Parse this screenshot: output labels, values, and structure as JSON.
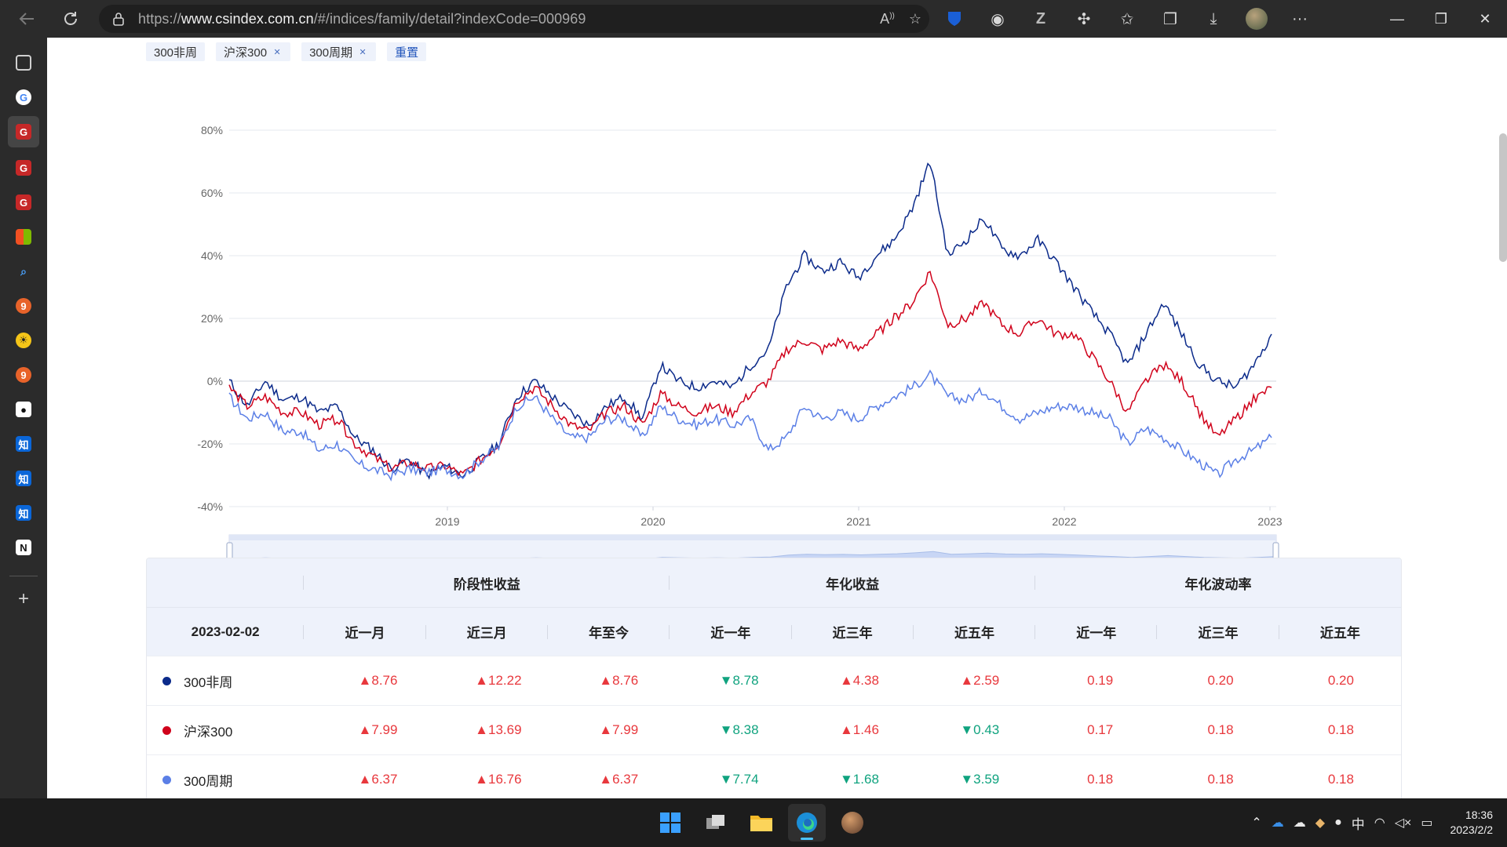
{
  "browser": {
    "url_prefix": "https://",
    "url_host": "www.csindex.com.cn",
    "url_path": "/#/indices/family/detail?indexCode=000969"
  },
  "tags": [
    {
      "label": "300非周",
      "closable": false
    },
    {
      "label": "沪深300",
      "closable": true
    },
    {
      "label": "300周期",
      "closable": true
    }
  ],
  "reset_label": "重置",
  "chart_data": {
    "type": "line",
    "y_tick_labels": [
      "80%",
      "60%",
      "40%",
      "20%",
      "0%",
      "-20%",
      "-40%"
    ],
    "ylim": [
      -40,
      80
    ],
    "x_tick_labels": [
      "2019",
      "2020",
      "2021",
      "2022",
      "2023"
    ],
    "grid": true,
    "series": [
      {
        "name": "300非周",
        "color": "#0b2a8a",
        "values": [
          0,
          -8,
          0,
          -6,
          -5,
          -10,
          -8,
          -18,
          -22,
          -28,
          -25,
          -30,
          -27,
          -30,
          -25,
          -20,
          -5,
          0,
          -5,
          -10,
          -14,
          -8,
          -5,
          -12,
          5,
          0,
          -2,
          0,
          -2,
          5,
          10,
          30,
          40,
          35,
          38,
          33,
          40,
          45,
          55,
          70,
          40,
          45,
          52,
          42,
          40,
          45,
          38,
          30,
          22,
          15,
          5,
          15,
          25,
          15,
          5,
          0,
          -2,
          5,
          15
        ]
      },
      {
        "name": "沪深300",
        "color": "#d0021b",
        "values": [
          -2,
          -8,
          -5,
          -10,
          -10,
          -14,
          -12,
          -20,
          -24,
          -28,
          -26,
          -28,
          -27,
          -30,
          -25,
          -20,
          -6,
          -2,
          -8,
          -14,
          -16,
          -10,
          -8,
          -14,
          -4,
          -8,
          -10,
          -8,
          -10,
          -4,
          0,
          10,
          13,
          10,
          13,
          10,
          15,
          20,
          25,
          35,
          18,
          20,
          25,
          18,
          15,
          20,
          15,
          15,
          8,
          0,
          -10,
          0,
          5,
          0,
          -10,
          -18,
          -12,
          -6,
          -2
        ]
      },
      {
        "name": "300周期",
        "color": "#5b7fe6",
        "values": [
          -5,
          -12,
          -10,
          -16,
          -16,
          -22,
          -20,
          -26,
          -28,
          -30,
          -28,
          -29,
          -28,
          -30,
          -25,
          -21,
          -8,
          -5,
          -12,
          -18,
          -18,
          -12,
          -12,
          -18,
          -8,
          -12,
          -14,
          -12,
          -14,
          -12,
          -22,
          -18,
          -8,
          -12,
          -10,
          -12,
          -8,
          -5,
          -2,
          2,
          -5,
          -6,
          -3,
          -8,
          -12,
          -10,
          -8,
          -8,
          -10,
          -12,
          -20,
          -15,
          -18,
          -22,
          -26,
          -30,
          -25,
          -22,
          -18
        ]
      }
    ]
  },
  "table": {
    "group_headers": [
      "",
      "阶段性收益",
      "年化收益",
      "年化波动率"
    ],
    "date": "2023-02-02",
    "columns": [
      "近一月",
      "近三月",
      "年至今",
      "近一年",
      "近三年",
      "近五年",
      "近一年",
      "近三年",
      "近五年"
    ],
    "rows": [
      {
        "name": "300非周",
        "color": "#0b2a8a",
        "cells": [
          {
            "v": "▲8.76",
            "c": "up"
          },
          {
            "v": "▲12.22",
            "c": "up"
          },
          {
            "v": "▲8.76",
            "c": "up"
          },
          {
            "v": "▼8.78",
            "c": "down"
          },
          {
            "v": "▲4.38",
            "c": "up"
          },
          {
            "v": "▲2.59",
            "c": "up"
          },
          {
            "v": "0.19",
            "c": "vol"
          },
          {
            "v": "0.20",
            "c": "vol"
          },
          {
            "v": "0.20",
            "c": "vol"
          }
        ]
      },
      {
        "name": "沪深300",
        "color": "#d0021b",
        "cells": [
          {
            "v": "▲7.99",
            "c": "up"
          },
          {
            "v": "▲13.69",
            "c": "up"
          },
          {
            "v": "▲7.99",
            "c": "up"
          },
          {
            "v": "▼8.38",
            "c": "down"
          },
          {
            "v": "▲1.46",
            "c": "up"
          },
          {
            "v": "▼0.43",
            "c": "down"
          },
          {
            "v": "0.17",
            "c": "vol"
          },
          {
            "v": "0.18",
            "c": "vol"
          },
          {
            "v": "0.18",
            "c": "vol"
          }
        ]
      },
      {
        "name": "300周期",
        "color": "#5b7fe6",
        "cells": [
          {
            "v": "▲6.37",
            "c": "up"
          },
          {
            "v": "▲16.76",
            "c": "up"
          },
          {
            "v": "▲6.37",
            "c": "up"
          },
          {
            "v": "▼7.74",
            "c": "down"
          },
          {
            "v": "▼1.68",
            "c": "down"
          },
          {
            "v": "▼3.59",
            "c": "down"
          },
          {
            "v": "0.18",
            "c": "vol"
          },
          {
            "v": "0.18",
            "c": "vol"
          },
          {
            "v": "0.18",
            "c": "vol"
          }
        ]
      }
    ]
  },
  "taskbar": {
    "ime": "中",
    "time": "18:36",
    "date": "2023/2/2"
  }
}
